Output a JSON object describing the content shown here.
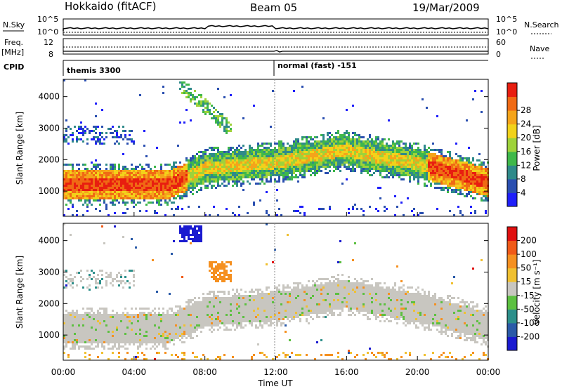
{
  "header": {
    "station": "Hokkaido (fitACF)",
    "beam": "Beam 05",
    "date": "19/Mar/2009"
  },
  "strip_labels": {
    "nsky": "N.Sky",
    "nsky_ticks": [
      "10^5",
      "10^0"
    ],
    "nsearch": "N.Search",
    "nsearch_ticks": [
      "10^5",
      "10^0"
    ],
    "freq_line1": "Freq.",
    "freq_line2": "[MHz]",
    "freq_ticks": [
      "12",
      "8"
    ],
    "nave": "Nave",
    "nave_ticks": [
      "60",
      "0"
    ],
    "cpid": "CPID",
    "cpid_segments": [
      "themis 3300",
      "normal (fast) -151"
    ]
  },
  "chart_data": [
    {
      "type": "heatmap",
      "panel": "power",
      "ylabel": "Slant Range [km]",
      "yticks": [
        "1000",
        "2000",
        "3000",
        "4000"
      ],
      "ylim": [
        200,
        4550
      ],
      "xlim": [
        0,
        24
      ],
      "colorbar": {
        "label": "Power [dB]",
        "ticks": [
          "4",
          "8",
          "12",
          "16",
          "20",
          "24",
          "28"
        ],
        "colors": [
          "#1f1ffa",
          "#2a4fb0",
          "#2f8a8a",
          "#3fb84a",
          "#9ed23a",
          "#f2d21a",
          "#f5a41a",
          "#f06a14",
          "#e81e10"
        ]
      }
    },
    {
      "type": "heatmap",
      "panel": "velocity",
      "ylabel": "Slant Range [km]",
      "yticks": [
        "1000",
        "2000",
        "3000",
        "4000"
      ],
      "ylim": [
        200,
        4550
      ],
      "xlim": [
        0,
        24
      ],
      "xlabel": "Time UT",
      "xticks": [
        "00:00",
        "04:00",
        "08:00",
        "12:00",
        "16:00",
        "20:00",
        "00:00"
      ],
      "colorbar": {
        "label": "Velocity [m s⁻¹]",
        "ticks": [
          "200",
          "100",
          "50",
          "15",
          "-15",
          "-50",
          "-100",
          "-200"
        ],
        "colors": [
          "#1a1ad0",
          "#2a5aa8",
          "#2c8f8a",
          "#5cc040",
          "#c8c6c0",
          "#f0c030",
          "#f59020",
          "#f05a18",
          "#e01010"
        ]
      }
    }
  ]
}
